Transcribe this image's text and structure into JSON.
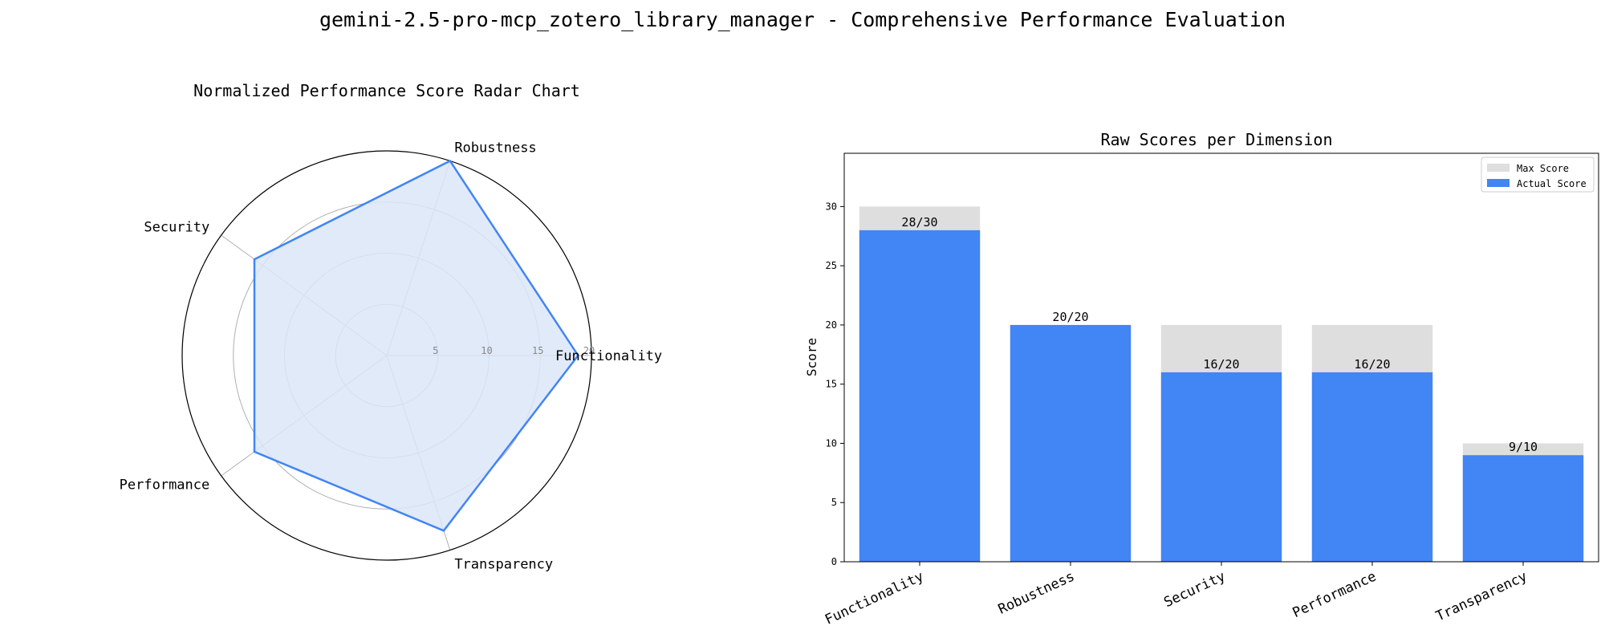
{
  "figure": {
    "title": "gemini-2.5-pro-mcp_zotero_library_manager - Comprehensive Performance Evaluation"
  },
  "chart_data": [
    {
      "type": "radar",
      "title": "Normalized Performance Score Radar Chart",
      "axes": [
        "Functionality",
        "Robustness",
        "Security",
        "Performance",
        "Transparency"
      ],
      "values": [
        18.7,
        20,
        16,
        16,
        18
      ],
      "rlim": [
        0,
        20
      ],
      "rticks": [
        5,
        10,
        15,
        20
      ],
      "grid": true,
      "colors": {
        "line": "#4285f4",
        "fill": "#dbe6f8",
        "grid": "#b0b0b0"
      }
    },
    {
      "type": "bar",
      "title": "Raw Scores per Dimension",
      "xlabel": "",
      "ylabel": "Score",
      "categories": [
        "Functionality",
        "Robustness",
        "Security",
        "Performance",
        "Transparency"
      ],
      "series": [
        {
          "name": "Max Score",
          "values": [
            30,
            20,
            20,
            20,
            10
          ],
          "color": "#dedede"
        },
        {
          "name": "Actual Score",
          "values": [
            28,
            20,
            16,
            16,
            9
          ],
          "color": "#4285f4"
        }
      ],
      "data_labels": [
        "28/30",
        "20/20",
        "16/20",
        "16/20",
        "9/10"
      ],
      "ylim": [
        0,
        34.5
      ],
      "yticks": [
        0,
        5,
        10,
        15,
        20,
        25,
        30
      ],
      "legend": "top-right",
      "grid": false
    }
  ]
}
